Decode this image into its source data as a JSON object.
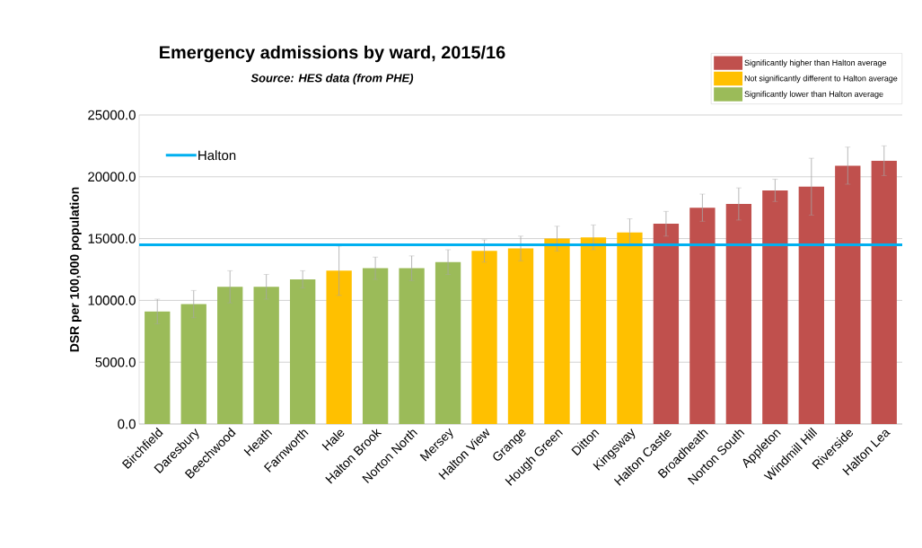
{
  "chart_data": {
    "type": "bar",
    "title": "Emergency admissions by ward, 2015/16",
    "subtitle": "Source: HES data (from PHE)",
    "ylabel": "DSR per 100,000 population",
    "categories": [
      "Birchfield",
      "Daresbury",
      "Beechwood",
      "Heath",
      "Farnworth",
      "Hale",
      "Halton Brook",
      "Norton North",
      "Mersey",
      "Halton View",
      "Grange",
      "Hough Green",
      "Ditton",
      "Kingsway",
      "Halton Castle",
      "Broadheath",
      "Norton South",
      "Appleton",
      "Windmill Hill",
      "Riverside",
      "Halton Lea"
    ],
    "series": [
      {
        "name": "Significantly higher than Halton average",
        "color": "#c0504d",
        "values": [
          null,
          null,
          null,
          null,
          null,
          null,
          null,
          null,
          null,
          null,
          null,
          null,
          null,
          null,
          16200,
          17500,
          17800,
          18900,
          19200,
          20900,
          21300
        ],
        "errors": [
          null,
          null,
          null,
          null,
          null,
          null,
          null,
          null,
          null,
          null,
          null,
          null,
          null,
          null,
          1000,
          1100,
          1300,
          900,
          2300,
          1500,
          1200
        ]
      },
      {
        "name": "Not significantly different to Halton average",
        "color": "#ffc000",
        "values": [
          null,
          null,
          null,
          null,
          null,
          12400,
          null,
          null,
          null,
          14000,
          14200,
          15000,
          15100,
          15500,
          null,
          null,
          null,
          null,
          null,
          null,
          null
        ],
        "errors": [
          null,
          null,
          null,
          null,
          null,
          2000,
          null,
          null,
          null,
          900,
          1000,
          1000,
          1000,
          1100,
          null,
          null,
          null,
          null,
          null,
          null,
          null
        ]
      },
      {
        "name": "Significantly lower than Halton average",
        "color": "#9bbb59",
        "values": [
          9100,
          9700,
          11100,
          11100,
          11700,
          null,
          12600,
          12600,
          13100,
          null,
          null,
          null,
          null,
          null,
          null,
          null,
          null,
          null,
          null,
          null,
          null
        ],
        "errors": [
          1000,
          1100,
          1300,
          1000,
          700,
          null,
          900,
          1000,
          1000,
          null,
          null,
          null,
          null,
          null,
          null,
          null,
          null,
          null,
          null,
          null,
          null
        ]
      }
    ],
    "ylim": [
      0,
      25000
    ],
    "yticks": [
      {
        "value": 0,
        "label": "0.0"
      },
      {
        "value": 5000,
        "label": "5000.0"
      },
      {
        "value": 10000,
        "label": "10000.0"
      },
      {
        "value": 15000,
        "label": "15000.0"
      },
      {
        "value": 20000,
        "label": "20000.0"
      },
      {
        "value": 25000,
        "label": "25000.0"
      }
    ],
    "ref_lines": [
      {
        "axis": "y",
        "value": 14500,
        "label": "Halton",
        "color": "#00b0f0"
      }
    ],
    "grid": "y",
    "legend": "top right"
  }
}
